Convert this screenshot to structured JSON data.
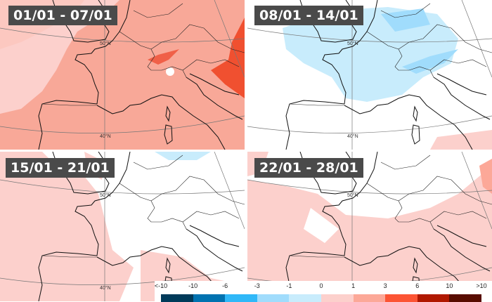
{
  "panels": [
    {
      "title": "01/01 - 07/01",
      "lat_labels": [
        "50°N",
        "40°N"
      ]
    },
    {
      "title": "08/01 - 14/01",
      "lat_labels": [
        "50°N",
        "40°N"
      ]
    },
    {
      "title": "15/01 - 21/01",
      "lat_labels": [
        "50°N",
        "40°N"
      ]
    },
    {
      "title": "22/01 - 28/01",
      "lat_labels": [
        "50°N",
        "40°N"
      ]
    }
  ],
  "legend": {
    "labels": [
      "<-10",
      "-10",
      "-6",
      "-3",
      "-1",
      "0",
      "1",
      "3",
      "6",
      "10",
      ">10"
    ],
    "colors": [
      "#003a5a",
      "#0072b0",
      "#30b8f8",
      "#a0dcfc",
      "#c8ecfc",
      "#fcd0cc",
      "#fca898",
      "#fc5434",
      "#b01800",
      "#580c00"
    ]
  }
}
